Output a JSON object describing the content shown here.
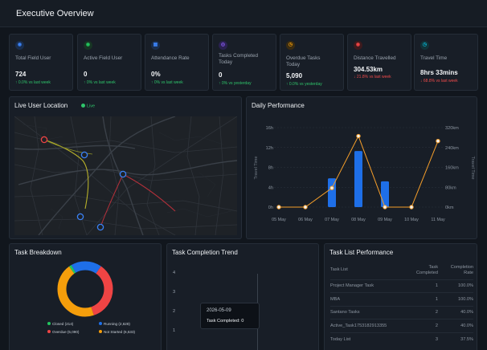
{
  "header": {
    "title": "Executive Overview"
  },
  "kpis": [
    {
      "label": "Total Field User",
      "value": "724",
      "delta": "↑ 0.0% vs last week",
      "trend": "up",
      "icon": "users-icon",
      "color": "#3b82f6"
    },
    {
      "label": "Active Field User",
      "value": "0",
      "delta": "↑ 0% vs last week",
      "trend": "up",
      "icon": "user-check-icon",
      "color": "#22c55e"
    },
    {
      "label": "Attendance Rate",
      "value": "0%",
      "delta": "↑ 0% vs last week",
      "trend": "up",
      "icon": "calendar-icon",
      "color": "#3b82f6"
    },
    {
      "label": "Tasks Completed Today",
      "value": "0",
      "delta": "↑ 0% vs yesterday",
      "trend": "up",
      "icon": "tasks-icon",
      "color": "#8b5cf6"
    },
    {
      "label": "Overdue Tasks Today",
      "value": "5,090",
      "delta": "↑ 0.0% vs yesterday",
      "trend": "up",
      "icon": "clock-icon",
      "color": "#f59e0b"
    },
    {
      "label": "Distance Travelled",
      "value": "304.53km",
      "delta": "↓ 21.8% vs last week",
      "trend": "down",
      "icon": "location-icon",
      "color": "#ef4444"
    },
    {
      "label": "Travel Time",
      "value": "8hrs 33mins",
      "delta": "↓ 68.8% vs last week",
      "trend": "down",
      "icon": "timer-icon",
      "color": "#06b6d4"
    }
  ],
  "map": {
    "title": "Live User Location",
    "live_label": "Live"
  },
  "daily": {
    "title": "Daily Performance",
    "chart_data": {
      "type": "bar",
      "categories": [
        "05 May",
        "06 May",
        "07 May",
        "08 May",
        "09 May",
        "10 May",
        "11 May"
      ],
      "series": [
        {
          "type": "bar",
          "axis": "left",
          "values": [
            0,
            0,
            5.8,
            11.3,
            5.2,
            0,
            0
          ],
          "color": "#1e6fe8"
        },
        {
          "type": "line",
          "axis": "right",
          "values": [
            0,
            0,
            77,
            286,
            0,
            0,
            266
          ],
          "color": "#f59e2a"
        }
      ],
      "ylabel": "Travel Time",
      "y2label": "Travel Time",
      "ylim": [
        0,
        16
      ],
      "y2lim": [
        0,
        320
      ],
      "yticks": [
        "0h",
        "4h",
        "8h",
        "12h",
        "16h"
      ],
      "y2ticks": [
        "0km",
        "80km",
        "160km",
        "240km",
        "320km"
      ]
    }
  },
  "breakdown": {
    "title": "Task Breakdown",
    "chart_data": {
      "type": "pie",
      "labels": [
        "Closed (214)",
        "Running (2,628)",
        "Overdue (5,090)",
        "Not Started (6,533)"
      ],
      "values": [
        214,
        2628,
        5090,
        6533
      ],
      "colors": [
        "#22c55e",
        "#1e6fe8",
        "#ef4444",
        "#f59e0b"
      ]
    }
  },
  "trend": {
    "title": "Task Completion Trend",
    "yticks": [
      "4",
      "3",
      "2",
      "1"
    ],
    "tooltip": {
      "date": "2026-05-09",
      "text": "Task Completed: 0"
    }
  },
  "tasklist": {
    "title": "Task List Performance",
    "columns": [
      "Task List",
      "Task Completed",
      "Completion Rate"
    ],
    "rows": [
      [
        "Project Manager Task",
        "1",
        "100.0%"
      ],
      [
        "MBA",
        "1",
        "100.0%"
      ],
      [
        "Santano Tasks",
        "2",
        "40.0%"
      ],
      [
        "Active_Task1753182913355",
        "2",
        "40.0%"
      ],
      [
        "Today List",
        "3",
        "37.5%"
      ]
    ]
  }
}
